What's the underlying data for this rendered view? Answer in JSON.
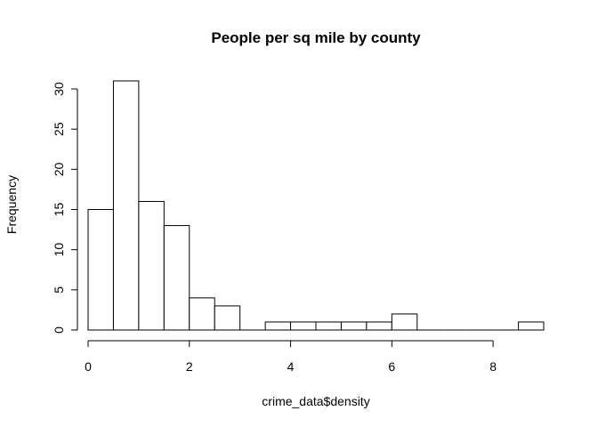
{
  "chart_data": {
    "type": "bar",
    "title": "People per sq mile by county",
    "xlabel": "crime_data$density",
    "ylabel": "Frequency",
    "bin_edges": [
      0,
      0.5,
      1,
      1.5,
      2,
      2.5,
      3,
      3.5,
      4,
      4.5,
      5,
      5.5,
      6,
      6.5,
      7,
      7.5,
      8,
      8.5,
      9
    ],
    "values": [
      15,
      31,
      16,
      13,
      4,
      3,
      0,
      1,
      1,
      1,
      1,
      1,
      2,
      0,
      0,
      0,
      0,
      1
    ],
    "xlim": [
      0,
      9
    ],
    "ylim": [
      0,
      32
    ],
    "x_ticks": [
      0,
      2,
      4,
      6,
      8
    ],
    "y_ticks": [
      0,
      5,
      10,
      15,
      20,
      25,
      30
    ],
    "grid": false,
    "legend": "none"
  }
}
